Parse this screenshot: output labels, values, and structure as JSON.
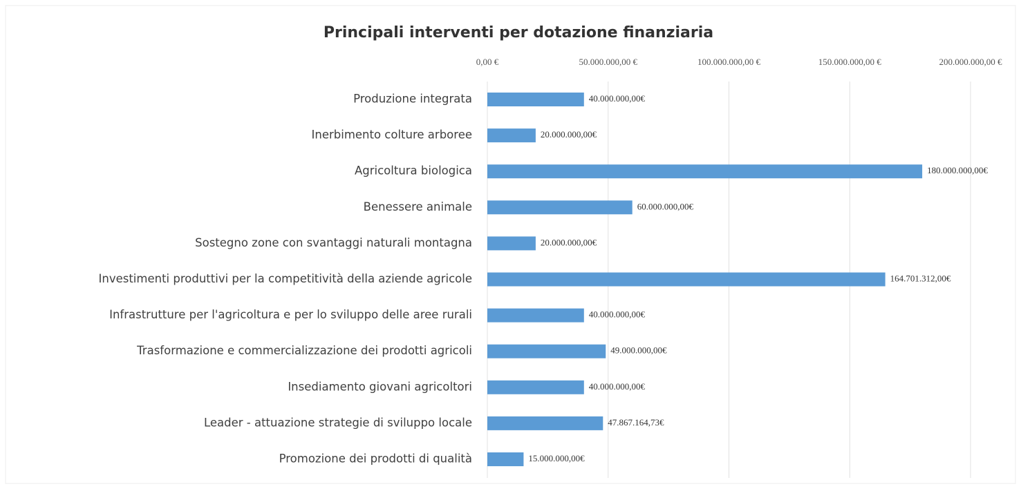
{
  "chart_data": {
    "type": "barh",
    "title": "Principali interventi per dotazione finanziaria",
    "categories": [
      "Produzione integrata",
      "Inerbimento colture arboree",
      "Agricoltura biologica",
      "Benessere animale",
      "Sostegno zone con svantaggi naturali montagna",
      "Investimenti produttivi per la competitività della aziende agricole ",
      "Infrastrutture per l'agricoltura e per lo sviluppo delle aree rurali",
      "Trasformazione e commercializzazione dei prodotti agricoli",
      "Insediamento giovani agricoltori ",
      "Leader - attuazione strategie di sviluppo locale",
      "Promozione dei prodotti di qualità"
    ],
    "values": [
      40000000,
      20000000,
      180000000,
      60000000,
      20000000,
      164701312,
      40000000,
      49000000,
      40000000,
      47867164.73,
      15000000
    ],
    "value_labels": [
      "40.000.000,00€",
      "20.000.000,00€",
      "180.000.000,00€",
      "60.000.000,00€",
      "20.000.000,00€",
      "164.701.312,00€",
      "40.000.000,00€",
      "49.000.000,00€",
      "40.000.000,00€",
      "47.867.164,73€",
      "15.000.000,00€"
    ],
    "color": "#5b9bd5",
    "xlim": [
      0,
      200000000
    ],
    "xticks": [
      {
        "value": 0,
        "label": "0,00 €"
      },
      {
        "value": 50000000,
        "label": "50.000.000,00 €"
      },
      {
        "value": 100000000,
        "label": "100.000.000,00 €"
      },
      {
        "value": 150000000,
        "label": "150.000.000,00 €"
      },
      {
        "value": 200000000,
        "label": "200.000.000,00 €"
      }
    ],
    "grid": true
  }
}
